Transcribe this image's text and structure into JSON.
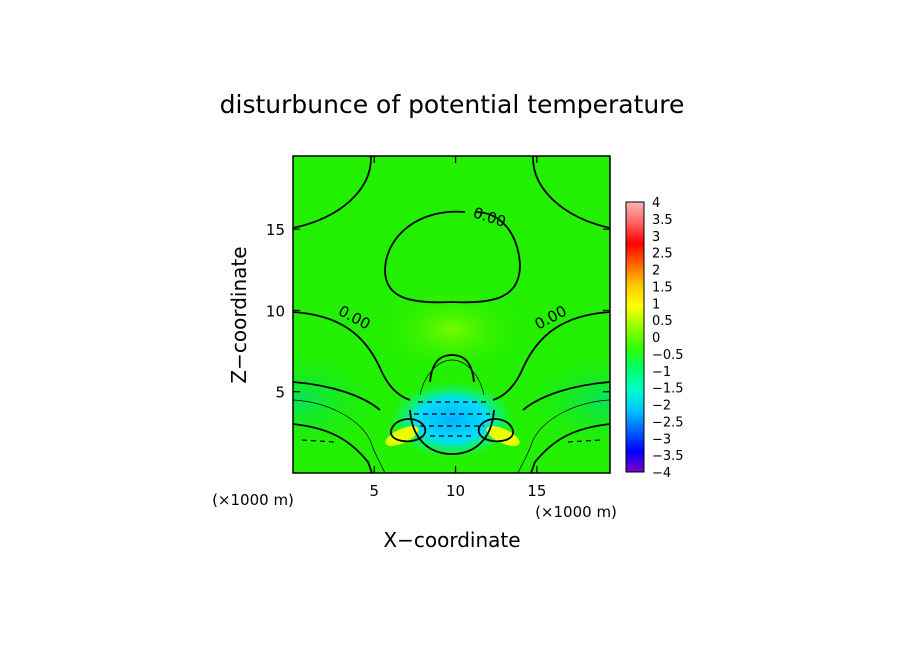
{
  "chart_data": {
    "type": "heatmap",
    "title": "disturbunce of potential temperature",
    "xlabel": "X−coordinate",
    "ylabel": "Z−coordinate",
    "x_unit": "(×1000 m)",
    "y_unit": "(×1000 m)",
    "xlim": [
      0,
      19.5
    ],
    "ylim": [
      0,
      19.5
    ],
    "x_ticks": [
      5,
      10,
      15
    ],
    "y_ticks": [
      5,
      10,
      15
    ],
    "x_tick_labels": [
      "5",
      "10",
      "15"
    ],
    "y_tick_labels": [
      "5",
      "10",
      "15"
    ],
    "contour_labels": [
      "0.00",
      "0.00",
      "0.00"
    ],
    "colorbar": {
      "min": -4,
      "max": 4,
      "ticks": [
        4,
        3.5,
        3,
        2.5,
        2,
        1.5,
        1,
        0.5,
        0,
        -0.5,
        -1,
        -1.5,
        -2,
        -2.5,
        -3,
        -3.5,
        -4
      ],
      "tick_labels": [
        "4",
        "3.5",
        "3",
        "2.5",
        "2",
        "1.5",
        "1",
        "0.5",
        "0",
        "−0.5",
        "−1",
        "−1.5",
        "−2",
        "−2.5",
        "−3",
        "−3.5",
        "−4"
      ],
      "colors": [
        "#7b00c8",
        "#0000ff",
        "#0064ff",
        "#00c8ff",
        "#00ffc8",
        "#00ff64",
        "#32ff00",
        "#96ff00",
        "#ffff00",
        "#ffc800",
        "#ff6400",
        "#ff0000",
        "#ff6464",
        "#ffb4b4"
      ]
    },
    "background_color": "#22f000",
    "grid": false
  }
}
